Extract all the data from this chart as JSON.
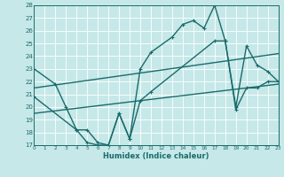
{
  "xlabel": "Humidex (Indice chaleur)",
  "bg_color": "#c6e8e8",
  "grid_color": "#ffffff",
  "line_color": "#1a6b6b",
  "ylim": [
    17,
    28
  ],
  "xlim": [
    0,
    23
  ],
  "yticks": [
    17,
    18,
    19,
    20,
    21,
    22,
    23,
    24,
    25,
    26,
    27,
    28
  ],
  "xticks": [
    0,
    1,
    2,
    3,
    4,
    5,
    6,
    7,
    8,
    9,
    10,
    11,
    12,
    13,
    14,
    15,
    16,
    17,
    18,
    19,
    20,
    21,
    22,
    23
  ],
  "line1_x": [
    0,
    2,
    3,
    4,
    5,
    6,
    7,
    8,
    9,
    10,
    11,
    13,
    14,
    15,
    16,
    17,
    18,
    19,
    20,
    21,
    22,
    23
  ],
  "line1_y": [
    23.0,
    21.8,
    20.0,
    18.2,
    17.2,
    17.0,
    17.0,
    19.5,
    17.5,
    23.0,
    24.3,
    25.5,
    26.5,
    26.8,
    26.2,
    28.0,
    25.2,
    20.0,
    24.8,
    23.3,
    22.8,
    22.0
  ],
  "line2_x": [
    0,
    4,
    5,
    6,
    7,
    8,
    9,
    10,
    11,
    17,
    18,
    19,
    20,
    21,
    22,
    23
  ],
  "line2_y": [
    20.8,
    18.2,
    18.2,
    17.2,
    17.0,
    19.5,
    17.5,
    20.5,
    21.2,
    25.2,
    25.2,
    19.8,
    21.5,
    21.5,
    22.0,
    22.0
  ],
  "line3_x": [
    0,
    23
  ],
  "line3_y": [
    19.5,
    21.8
  ],
  "line4_x": [
    0,
    23
  ],
  "line4_y": [
    21.5,
    24.2
  ],
  "markersize": 2.5,
  "linewidth": 1.0
}
